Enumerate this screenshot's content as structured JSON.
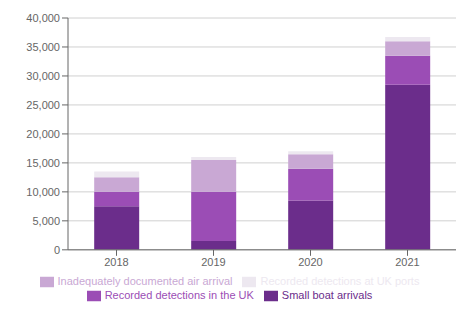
{
  "chart_data": {
    "type": "bar",
    "stacked": true,
    "categories": [
      "2018",
      "2019",
      "2020",
      "2021"
    ],
    "series": [
      {
        "name": "Small boat arrivals",
        "color": "#6B2D8B",
        "values": [
          7500,
          1500,
          8500,
          28500
        ]
      },
      {
        "name": "Recorded detections in the UK",
        "color": "#9B4DB5",
        "values": [
          2500,
          8500,
          5500,
          5000
        ]
      },
      {
        "name": "Inadequately documented air arrival",
        "color": "#C9A8D4",
        "values": [
          2500,
          5500,
          2500,
          2500
        ]
      },
      {
        "name": "Recorded detections at UK ports",
        "color": "#EDE8F0",
        "values": [
          1000,
          500,
          500,
          700
        ]
      }
    ],
    "ylim": [
      0,
      40000
    ],
    "yticks": [
      0,
      {
        "value": 5000,
        "label": "5,000"
      },
      {
        "value": 10000,
        "label": "10,000"
      },
      {
        "value": 15000,
        "label": "15,000"
      },
      {
        "value": 20000,
        "label": "20,000"
      },
      {
        "value": 25000,
        "label": "25,000"
      },
      {
        "value": 30000,
        "label": "30,000"
      },
      {
        "value": 35000,
        "label": "35,000"
      },
      {
        "value": 40000,
        "label": "40,000"
      }
    ],
    "grid": true,
    "legend": "bottom"
  }
}
